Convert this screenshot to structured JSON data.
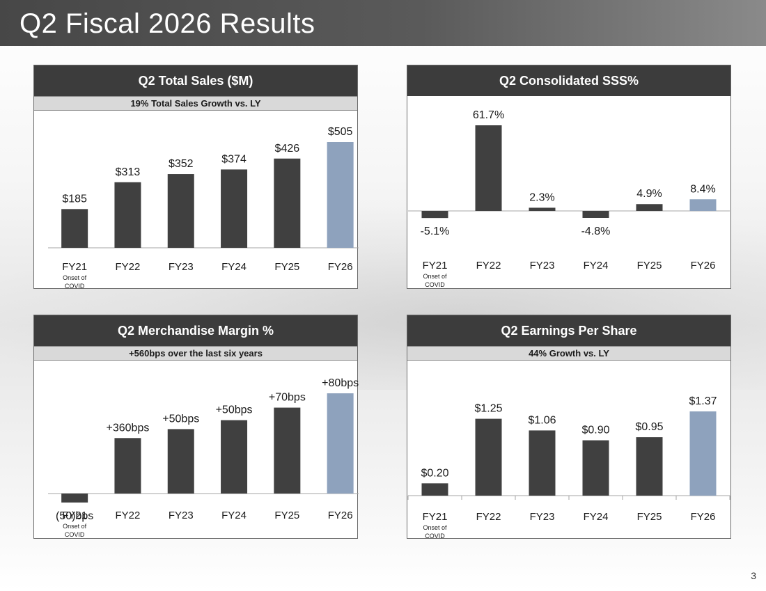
{
  "page": {
    "title": "Q2 Fiscal 2026 Results",
    "page_number": "3"
  },
  "colors": {
    "bar": "#404040",
    "highlight": "#8ea2bd",
    "axis": "#a6a6a6",
    "label": "#1a1a1a"
  },
  "chart_data": [
    {
      "id": "total_sales",
      "type": "bar",
      "title": "Q2 Total Sales ($M)",
      "subtitle": "19% Total Sales Growth vs. LY",
      "categories": [
        "FY21",
        "FY22",
        "FY23",
        "FY24",
        "FY25",
        "FY26"
      ],
      "note": "Onset of COVID",
      "values": [
        185,
        313,
        352,
        374,
        426,
        505
      ],
      "labels": [
        "$185",
        "$313",
        "$352",
        "$374",
        "$426",
        "$505"
      ],
      "ylim": [
        0,
        505
      ],
      "highlight_last": true,
      "ticks": false
    },
    {
      "id": "sss",
      "type": "bar",
      "title": "Q2 Consolidated SSS%",
      "subtitle": "",
      "categories": [
        "FY21",
        "FY22",
        "FY23",
        "FY24",
        "FY25",
        "FY26"
      ],
      "note": "Onset of COVID",
      "values": [
        -5.1,
        61.7,
        2.3,
        -4.8,
        4.9,
        8.4
      ],
      "labels": [
        "-5.1%",
        "61.7%",
        "2.3%",
        "-4.8%",
        "4.9%",
        "8.4%"
      ],
      "ylim": [
        -5.1,
        61.7
      ],
      "highlight_last": true,
      "ticks": false
    },
    {
      "id": "merch_margin",
      "type": "bar",
      "title": "Q2 Merchandise Margin %",
      "subtitle": "+560bps over the last six years",
      "categories": [
        "FY21",
        "FY22",
        "FY23",
        "FY24",
        "FY25",
        "FY26"
      ],
      "note": "Onset of COVID",
      "values": [
        -50,
        310,
        360,
        410,
        480,
        560
      ],
      "labels": [
        "(50)bps",
        "+360bps",
        "+50bps",
        "+50bps",
        "+70bps",
        "+80bps"
      ],
      "ylim": [
        -400,
        560
      ],
      "highlight_last": true,
      "ticks": false
    },
    {
      "id": "eps",
      "type": "bar",
      "title": "Q2 Earnings Per Share",
      "subtitle": "44% Growth vs. LY",
      "categories": [
        "FY21",
        "FY22",
        "FY23",
        "FY24",
        "FY25",
        "FY26"
      ],
      "note": "Onset of COVID",
      "values": [
        0.2,
        1.25,
        1.06,
        0.9,
        0.95,
        1.37
      ],
      "labels": [
        "$0.20",
        "$1.25",
        "$1.06",
        "$0.90",
        "$0.95",
        "$1.37"
      ],
      "ylim": [
        0,
        1.37
      ],
      "highlight_last": true,
      "ticks": true
    }
  ]
}
